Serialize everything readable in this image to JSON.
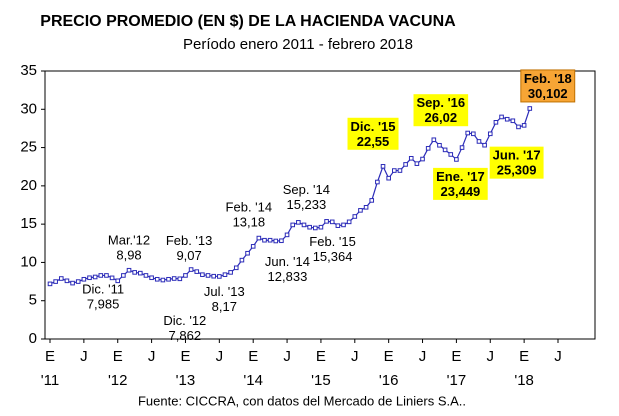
{
  "chart_data": {
    "type": "line",
    "title": "PRECIO PROMEDIO (EN $) DE LA HACIENDA VACUNA",
    "subtitle": "Período enero 2011 - febrero 2018",
    "source": "Fuente: CICCRA, con datos del Mercado de Liniers S.A..",
    "color": "#2b2bb8",
    "ylim": [
      0,
      35
    ],
    "yticks": [
      0,
      5,
      10,
      15,
      20,
      25,
      30,
      35
    ],
    "categories": [
      "E",
      null,
      null,
      null,
      null,
      null,
      "J",
      null,
      null,
      null,
      null,
      null,
      "E",
      null,
      null,
      null,
      null,
      null,
      "J",
      null,
      null,
      null,
      null,
      null,
      "E",
      null,
      null,
      null,
      null,
      null,
      "J",
      null,
      null,
      null,
      null,
      null,
      "E",
      null,
      null,
      null,
      null,
      null,
      "J",
      null,
      null,
      null,
      null,
      null,
      "E",
      null,
      null,
      null,
      null,
      null,
      "J",
      null,
      null,
      null,
      null,
      null,
      "E",
      null,
      null,
      null,
      null,
      null,
      "J",
      null,
      null,
      null,
      null,
      null,
      "E",
      null,
      null,
      null,
      null,
      null,
      "J",
      null,
      null,
      null,
      null,
      null,
      "E",
      null,
      null,
      null,
      null,
      null,
      "J"
    ],
    "year_labels": [
      "'11",
      "'12",
      "'13",
      "'14",
      "'15",
      "'16",
      "'17",
      "'18"
    ],
    "values": [
      7.2,
      7.5,
      7.9,
      7.6,
      7.3,
      7.5,
      7.8,
      8.0,
      8.1,
      8.3,
      8.3,
      7.985,
      7.6,
      8.3,
      8.98,
      8.7,
      8.6,
      8.3,
      8.0,
      7.8,
      7.7,
      7.8,
      7.9,
      7.862,
      8.3,
      9.07,
      8.8,
      8.4,
      8.3,
      8.2,
      8.17,
      8.4,
      8.7,
      9.3,
      10.3,
      11.2,
      12.1,
      13.18,
      12.9,
      12.9,
      12.8,
      12.833,
      13.6,
      14.9,
      15.233,
      14.9,
      14.6,
      14.5,
      14.6,
      15.364,
      15.3,
      14.8,
      14.9,
      15.3,
      16.0,
      16.8,
      17.2,
      18.1,
      20.5,
      22.55,
      21.0,
      22.0,
      22.0,
      22.8,
      23.6,
      22.9,
      23.5,
      24.9,
      26.02,
      25.3,
      24.7,
      24.1,
      23.449,
      25.0,
      26.9,
      26.8,
      25.8,
      25.309,
      26.8,
      28.3,
      29.0,
      28.7,
      28.5,
      27.7,
      27.9,
      30.102,
      null,
      null,
      null,
      null,
      null
    ],
    "point_labels": [
      null,
      null,
      null,
      null,
      null,
      null,
      null,
      null,
      null,
      null,
      null,
      "Dic. '11",
      null,
      null,
      "Mar.'12",
      null,
      null,
      null,
      null,
      null,
      null,
      null,
      null,
      "Dic. '12",
      null,
      "Feb. '13",
      null,
      null,
      null,
      null,
      "Jul. '13",
      null,
      null,
      null,
      null,
      null,
      null,
      "Feb. '14",
      null,
      null,
      null,
      "Jun. '14",
      null,
      null,
      "Sep. '14",
      null,
      null,
      null,
      null,
      "Feb. '15",
      null,
      null,
      null,
      null,
      null,
      null,
      null,
      null,
      null,
      "Dic. '15",
      null,
      null,
      null,
      null,
      null,
      null,
      null,
      null,
      "Sep. '16",
      null,
      null,
      null,
      "Ene. '17",
      null,
      null,
      null,
      null,
      "Jun. '17",
      null,
      null,
      null,
      null,
      null,
      null,
      null,
      "Feb. '18",
      null,
      null,
      null,
      null,
      null
    ],
    "value_labels": [
      null,
      null,
      null,
      null,
      null,
      null,
      null,
      null,
      null,
      null,
      null,
      "7,985",
      null,
      null,
      "8,98",
      null,
      null,
      null,
      null,
      null,
      null,
      null,
      null,
      "7,862",
      null,
      "9,07",
      null,
      null,
      null,
      null,
      "8,17",
      null,
      null,
      null,
      null,
      null,
      null,
      "13,18",
      null,
      null,
      null,
      "12,833",
      null,
      null,
      "15,233",
      null,
      null,
      null,
      null,
      "15,364",
      null,
      null,
      null,
      null,
      null,
      null,
      null,
      null,
      null,
      "22,55",
      null,
      null,
      null,
      null,
      null,
      null,
      null,
      null,
      "26,02",
      null,
      null,
      null,
      "23,449",
      null,
      null,
      null,
      null,
      "25,309",
      null,
      null,
      null,
      null,
      null,
      null,
      null,
      "30,102",
      null,
      null,
      null,
      null,
      null
    ],
    "label_boxes": [
      null,
      null,
      null,
      null,
      null,
      null,
      null,
      null,
      null,
      null,
      null,
      null,
      null,
      null,
      null,
      null,
      null,
      null,
      null,
      null,
      null,
      null,
      null,
      null,
      null,
      null,
      null,
      null,
      null,
      null,
      null,
      null,
      null,
      null,
      null,
      null,
      null,
      null,
      null,
      null,
      null,
      null,
      null,
      null,
      null,
      null,
      null,
      null,
      null,
      null,
      null,
      null,
      null,
      null,
      null,
      null,
      null,
      null,
      null,
      "#ffff00",
      null,
      null,
      null,
      null,
      null,
      null,
      null,
      null,
      "#ffff00",
      null,
      null,
      null,
      "#ffff00",
      null,
      null,
      null,
      null,
      "#ffff00",
      null,
      null,
      null,
      null,
      null,
      null,
      null,
      "#f7a535",
      null,
      null,
      null,
      null,
      null
    ]
  }
}
